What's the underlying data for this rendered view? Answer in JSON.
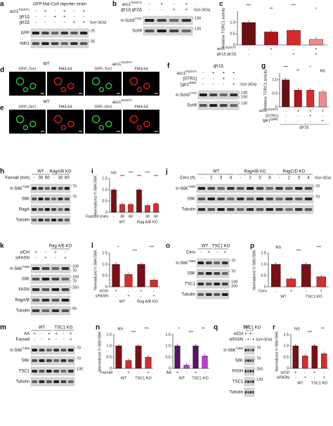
{
  "a": {
    "letter": "a",
    "title": "GFP Mal-CoA reporter strain",
    "size_label": "Size (kDa)",
    "headers": [
      {
        "label": {
          "text": "acc1",
          "sup": "S1157A"
        },
        "marks": [
          "-",
          "+",
          "-",
          "+",
          "-",
          "+"
        ]
      },
      {
        "label": "gtr1Δ",
        "marks": [
          "-",
          "-",
          "+",
          "+",
          "-",
          "-"
        ]
      },
      {
        "label": "gtr2Δ",
        "marks": [
          "-",
          "-",
          "-",
          "-",
          "+",
          "+"
        ]
      }
    ],
    "blots": [
      {
        "label": "GFP",
        "kda": [
          "25"
        ]
      },
      {
        "label": "Adh1",
        "kda": [
          "35"
        ]
      }
    ]
  },
  "b": {
    "letter": "b",
    "size_label": "Size (kDa)",
    "headers": [
      {
        "label": {
          "text": "acc1",
          "sup": "S1157A"
        },
        "marks": [
          "-",
          "+",
          "-",
          "+"
        ]
      },
      {
        "label": "gtr1Δ gtr2Δ",
        "marks": [
          "-",
          "-",
          "+",
          "+"
        ]
      }
    ],
    "blots": [
      {
        "label": {
          "text": "℗-Sch9",
          "sup": "T737"
        },
        "kda": [
          "130"
        ]
      },
      {
        "label": "Sch9",
        "kda": [
          "130"
        ]
      }
    ]
  },
  "c": {
    "letter": "c",
    "ylabel": "Relative TORC1 activity",
    "ylim": [
      0,
      1.5
    ],
    "yticks": [
      0,
      0.5,
      {
        "value": 1,
        "label": "1.0"
      }
    ],
    "values": [
      1,
      0.58,
      0.65,
      0.25
    ],
    "colors": [
      "#6b0f12",
      "#b5121b",
      "#d92b2b",
      "#f08a8a"
    ],
    "sig": [
      "***",
      "**",
      "***",
      "*"
    ],
    "rows": [
      {
        "label": {
          "text": "acc1",
          "sup": "S1157A"
        },
        "marks": [
          "-",
          "+",
          "-",
          "+"
        ]
      },
      {
        "label": "gtr1Δ gtr2Δ",
        "marks": [
          "-",
          "-",
          "+",
          "+"
        ]
      }
    ]
  },
  "d": {
    "letter": "d",
    "groups": [
      "WT",
      {
        "text": "acc1",
        "sup": "S1157A"
      }
    ],
    "columns": [
      "GFP–Tor1",
      "FM4-64",
      "GFP–Tor1",
      "FM4-64"
    ]
  },
  "e": {
    "letter": "e",
    "groups": [
      "WT",
      {
        "text": "acc1",
        "sup": "S1157A"
      }
    ],
    "columns": [
      "GFP–Gtr1",
      "FM4-64",
      "GFP–Gtr1",
      "FM4-64"
    ]
  },
  "f": {
    "letter": "f",
    "title": "gtr1Δ",
    "size_label": "Size (kDa)",
    "headers": [
      {
        "label": {
          "text": "acc1",
          "sup": "S1157A"
        },
        "marks": [
          "-",
          "+",
          "+",
          "+"
        ]
      },
      {
        "label": "[GTR1]",
        "marks": [
          "-",
          "-",
          "+",
          "-"
        ]
      },
      {
        "label": {
          "text": "[gtr1",
          "sup": "Q65L"
        },
        "marks": [
          "-",
          "-",
          "-",
          "+"
        ]
      }
    ],
    "blots": [
      {
        "label": {
          "text": "℗-Sch9",
          "sup": "T737"
        },
        "kda": [
          "130",
          "100"
        ]
      },
      {
        "label": "Sch9",
        "kda": [
          "130"
        ]
      }
    ]
  },
  "g": {
    "letter": "g",
    "ylabel": "Relative TORC1 activity",
    "ylim": [
      0,
      1.25
    ],
    "yticks": [
      0,
      0.5,
      {
        "value": 1,
        "label": "1.0"
      }
    ],
    "values": [
      1,
      0.62,
      0.62,
      0.55
    ],
    "colors": [
      "#6b0f12",
      "#b5121b",
      "#d92b2b",
      "#f08a8a"
    ],
    "sig": [
      "***",
      "**",
      "*",
      "NS"
    ],
    "rows": [
      {
        "label": {
          "text": "acc1",
          "sup": "S1157A"
        },
        "marks": [
          "-",
          "+",
          "+",
          "+"
        ]
      },
      {
        "label": "[GTR1]",
        "marks": [
          "-",
          "-",
          "+",
          "-"
        ]
      },
      {
        "label": {
          "text": "[gtr1",
          "sup": "Q65L"
        },
        "marks": [
          "-",
          "-",
          "-",
          "+"
        ]
      }
    ],
    "footer": "gtr1Δ"
  },
  "h": {
    "letter": "h",
    "groups": [
      "WT",
      "RagA/B KO"
    ],
    "headers": [
      {
        "label": "Fasnall (min)",
        "marks": [
          "-",
          "30",
          "60",
          "-",
          "30",
          "60"
        ]
      }
    ],
    "blots": [
      {
        "label": {
          "text": "℗-S6K",
          "sup": "T389"
        },
        "kda": [
          "70"
        ]
      },
      {
        "label": "S6K",
        "kda": [
          "70"
        ]
      },
      {
        "label": "RagA",
        "kda": []
      },
      {
        "label": "Tubulin",
        "kda": []
      }
    ]
  },
  "i": {
    "letter": "i",
    "ylabel": "Normalized ℗-S6K/S6K",
    "ylim": [
      0,
      1.5
    ],
    "yticks": [
      0,
      0.5,
      {
        "value": 1,
        "label": "1.0"
      },
      {
        "value": 1.5,
        "label": "1.5"
      }
    ],
    "values": [
      1,
      0.35,
      0.35,
      1,
      0.3,
      0.38
    ],
    "colors": [
      "#7a0f14",
      "#d92b2b",
      "#d92b2b",
      "#7a0f14",
      "#d92b2b",
      "#d92b2b"
    ],
    "sig": [
      "NS",
      "***",
      "***",
      "***",
      "***",
      "***"
    ],
    "rows": [
      {
        "label": "Fasnall (min)",
        "marks": [
          "-",
          "30",
          "60",
          "-",
          "30",
          "60"
        ]
      }
    ],
    "groups": [
      "WT",
      "Rag A/B KO"
    ]
  },
  "j": {
    "letter": "j",
    "groups": [
      "WT",
      "RagA/B KO",
      "RagC/D KO"
    ],
    "size_label": "Size (kDa)",
    "headers": [
      {
        "label": "Ceru (h)",
        "marks": [
          "-",
          "2",
          "3",
          "4",
          "-",
          "2",
          "3",
          "4",
          "-",
          "2",
          "3",
          "4"
        ]
      }
    ],
    "blots": [
      {
        "label": {
          "text": "℗-S6K",
          "sup": "T389"
        },
        "kda": [
          "70"
        ]
      },
      {
        "label": "S6K",
        "kda": [
          "70"
        ]
      },
      {
        "label": "Tubulin",
        "kda": []
      }
    ]
  },
  "k": {
    "letter": "k",
    "groups": [
      "Rag A/B KO"
    ],
    "headers": [
      {
        "label": "siCtrl",
        "marks": [
          "+",
          "-",
          "+",
          "-"
        ]
      },
      {
        "label": "siFASN",
        "marks": [
          "-",
          "+",
          "-",
          "+"
        ]
      }
    ],
    "blots": [
      {
        "label": {
          "text": "℗-S6K",
          "sup": "T389"
        },
        "kda": [
          "100",
          "70"
        ]
      },
      {
        "label": "S6K",
        "kda": [
          "100",
          "70"
        ]
      },
      {
        "label": "FASN",
        "kda": [
          "250"
        ]
      },
      {
        "label": "RagA/B",
        "kda": []
      },
      {
        "label": "Tubulin",
        "kda": [
          "55"
        ]
      }
    ]
  },
  "l": {
    "letter": "l",
    "ylabel": "Normalized ℗-S6K/S6K",
    "ylim": [
      0,
      1.5
    ],
    "yticks": [
      0,
      0.5,
      {
        "value": 1,
        "label": "1.0"
      },
      {
        "value": 1.5,
        "label": "1.5"
      }
    ],
    "values": [
      1,
      0.55,
      1,
      0.3
    ],
    "colors": [
      "#7a0f14",
      "#d92b2b",
      "#7a0f14",
      "#d92b2b"
    ],
    "sig": [
      "*",
      "***",
      "***"
    ],
    "rows": [
      {
        "label": "siCtrl",
        "marks": [
          "+",
          "-",
          "+",
          "-"
        ]
      },
      {
        "label": "siFASN",
        "marks": [
          "-",
          "+",
          "-",
          "+"
        ]
      }
    ],
    "groups": [
      "WT",
      "Rag A/B KO"
    ]
  },
  "o": {
    "letter": "o",
    "groups": [
      "WT",
      "TSC1 KO"
    ],
    "headers": [
      {
        "label": "Ceru",
        "marks": [
          "-",
          "+",
          "-",
          "+"
        ]
      }
    ],
    "blots": [
      {
        "label": {
          "text": "℗-S6K",
          "sup": "T389"
        },
        "kda": [
          "70"
        ]
      },
      {
        "label": "S6K",
        "kda": [
          "70"
        ]
      },
      {
        "label": "TSC1",
        "kda": [
          "130",
          "100"
        ]
      },
      {
        "label": "Tubulin",
        "kda": []
      }
    ]
  },
  "p": {
    "letter": "p",
    "ylabel": "Normalized ℗-S6K/S6K",
    "ylim": [
      0,
      1.5
    ],
    "yticks": [
      0,
      0.5,
      {
        "value": 1,
        "label": "1.0"
      },
      {
        "value": 1.5,
        "label": "1.5"
      }
    ],
    "values": [
      1,
      0.35,
      1,
      0.45
    ],
    "colors": [
      "#7a0f14",
      "#d92b2b",
      "#7a0f14",
      "#d92b2b"
    ],
    "sig": [
      "NS",
      "***",
      "***"
    ],
    "rows": [
      {
        "label": "Ceru",
        "marks": [
          "-",
          "+",
          "-",
          "+"
        ]
      }
    ],
    "groups": [
      "WT",
      "TSC1 KO"
    ]
  },
  "m": {
    "letter": "m",
    "groups": [
      "WT",
      "TSC1 KO"
    ],
    "headers": [
      {
        "label": "AA",
        "marks": [
          "+",
          "-",
          "+",
          "+",
          "-",
          "+"
        ]
      },
      {
        "label": "Fasnall",
        "marks": [
          "-",
          "-",
          "+",
          "-",
          "-",
          "+"
        ]
      }
    ],
    "blots": [
      {
        "label": {
          "text": "℗-S6K",
          "sup": "T389"
        },
        "kda": [
          "70"
        ]
      },
      {
        "label": "S6K",
        "kda": [
          "70"
        ]
      },
      {
        "label": "TSC1",
        "kda": [
          "130"
        ]
      },
      {
        "label": "Tubulin",
        "kda": []
      }
    ]
  },
  "n": {
    "letter": "n",
    "charts": [
      {
        "ylabel": "Normalized ℗-S6K/S6K",
        "ylim": [
          0,
          1.5
        ],
        "yticks": [
          0,
          0.5,
          {
            "value": 1,
            "label": "1.0"
          },
          {
            "value": 1.5,
            "label": "1.5"
          }
        ],
        "values": [
          1,
          0.35,
          1,
          0.5
        ],
        "colors": [
          "#7a0f14",
          "#d92b2b",
          "#7a0f14",
          "#d92b2b"
        ],
        "sig": [
          "NS",
          "***",
          "***"
        ],
        "rows": [
          {
            "label": "Fasnall",
            "marks": [
              "-",
              "+",
              "-",
              "+"
            ]
          }
        ],
        "groups": [
          "WT",
          "TSC1 KO"
        ]
      },
      {
        "ylim": [
          0,
          1.5
        ],
        "yticks": [
          0,
          0.5,
          {
            "value": 1,
            "label": "1.0"
          },
          {
            "value": 1.5,
            "label": "1.5"
          }
        ],
        "values": [
          1,
          0.15,
          1,
          0.55
        ],
        "colors": [
          "#5a1166",
          "#c23ad6",
          "#5a1166",
          "#c23ad6"
        ],
        "sig": [
          "*",
          "***",
          "**"
        ],
        "rows": [
          {
            "label": "AA",
            "marks": [
              "+",
              "-",
              "+",
              "-"
            ]
          }
        ],
        "groups": [
          "WT",
          "TSC1 KO"
        ]
      }
    ]
  },
  "q": {
    "letter": "q",
    "groups": [
      "WT",
      "TSC1 KO"
    ],
    "size_label": "Size (kDa)",
    "headers": [
      {
        "label": "siCtrl",
        "marks": [
          "+",
          "-",
          "+",
          "-"
        ]
      },
      {
        "label": "siFASN",
        "marks": [
          "-",
          "+",
          "-",
          "+"
        ]
      }
    ],
    "blots": [
      {
        "label": {
          "text": "℗-S6K",
          "sup": "T389"
        },
        "kda": [
          "70"
        ]
      },
      {
        "label": "S6K",
        "kda": [
          "70"
        ]
      },
      {
        "label": "FASN",
        "kda": [
          "250"
        ]
      },
      {
        "label": "TSC1",
        "kda": [
          "130"
        ]
      },
      {
        "label": "Tubulin",
        "kda": []
      }
    ]
  },
  "r": {
    "letter": "r",
    "ylabel": "Normalized ℗-S6K/S6K",
    "ylim": [
      0,
      1.5
    ],
    "yticks": [
      0,
      0.5,
      {
        "value": 1,
        "label": "1.0"
      },
      {
        "value": 1.5,
        "label": "1.5"
      }
    ],
    "values": [
      1,
      0.55,
      1,
      0.65
    ],
    "colors": [
      "#7a0f14",
      "#d92b2b",
      "#7a0f14",
      "#d92b2b"
    ],
    "sig": [
      "NS",
      "***",
      "**"
    ],
    "rows": [
      {
        "label": "siCtrl",
        "marks": [
          "+",
          "-",
          "+",
          "-"
        ]
      },
      {
        "label": "siFASN",
        "marks": [
          "-",
          "+",
          "-",
          "+"
        ]
      }
    ],
    "groups": [
      "WT",
      "TSC1 KO"
    ]
  }
}
